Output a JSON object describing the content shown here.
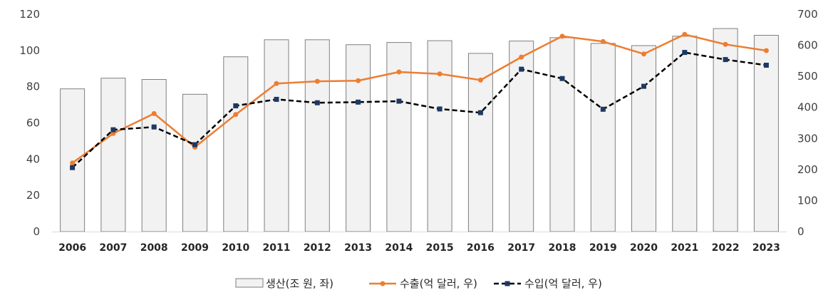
{
  "chart_data": {
    "type": "bar",
    "categories": [
      "2006",
      "2007",
      "2008",
      "2009",
      "2010",
      "2011",
      "2012",
      "2013",
      "2014",
      "2015",
      "2016",
      "2017",
      "2018",
      "2019",
      "2020",
      "2021",
      "2022",
      "2023"
    ],
    "series": [
      {
        "name": "생산(조 원, 좌)",
        "type": "bar",
        "axis": "left",
        "values": [
          78.8,
          84.7,
          84.0,
          75.8,
          96.5,
          105.9,
          105.9,
          103.2,
          104.4,
          105.4,
          98.4,
          105.2,
          107.1,
          103.9,
          102.7,
          107.9,
          112.1,
          108.4
        ]
      },
      {
        "name": "수출(억 달러, 우)",
        "type": "line",
        "axis": "right",
        "style": "solid",
        "marker": "circle",
        "values": [
          221,
          316,
          380,
          272,
          377,
          477,
          484,
          486,
          514,
          508,
          488,
          562,
          629,
          612,
          572,
          635,
          603,
          583
        ]
      },
      {
        "name": "수입(억 달러, 우)",
        "type": "line",
        "axis": "right",
        "style": "dashed",
        "marker": "square",
        "values": [
          206,
          328,
          337,
          280,
          405,
          426,
          415,
          417,
          420,
          395,
          383,
          523,
          493,
          394,
          468,
          577,
          554,
          536
        ]
      }
    ],
    "ylim_left": [
      0,
      120
    ],
    "yticks_left": [
      0,
      20,
      40,
      60,
      80,
      100,
      120
    ],
    "ylim_right": [
      0,
      700
    ],
    "yticks_right": [
      0,
      100,
      200,
      300,
      400,
      500,
      600,
      700
    ],
    "grid": false,
    "legend": "bottom",
    "colors": {
      "bar_fill": "#f2f2f2",
      "bar_stroke": "#7f7f7f",
      "export_line": "#ed7d31",
      "import_line": "#000000",
      "import_marker": "#1f3864",
      "axis": "#d9d9d9"
    }
  }
}
